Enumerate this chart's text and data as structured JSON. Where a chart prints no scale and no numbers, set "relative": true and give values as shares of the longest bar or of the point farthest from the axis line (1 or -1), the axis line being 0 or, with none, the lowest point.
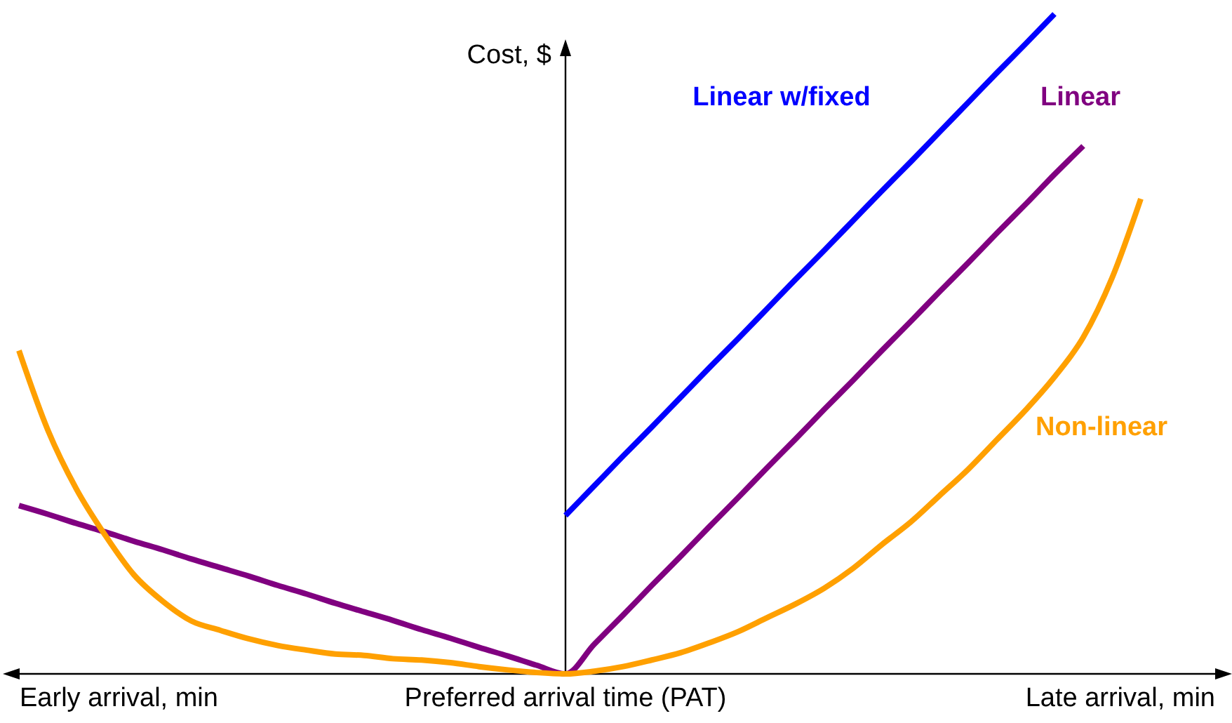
{
  "chart_data": {
    "type": "line",
    "relative": true,
    "ylabel": "Cost, $",
    "xlabel": "Preferred arrival time (PAT)",
    "annotations": [
      "Early arrival, min",
      "Late arrival, min"
    ],
    "categories": [
      null,
      null,
      null,
      null,
      null,
      null,
      null,
      null,
      null,
      null,
      null,
      null,
      null,
      null,
      null,
      null,
      null,
      null,
      null,
      null,
      null,
      null,
      null,
      null,
      null,
      null,
      null,
      null,
      null,
      null,
      null,
      null,
      null,
      null,
      null,
      null,
      null,
      null,
      null,
      null
    ],
    "series": [
      {
        "name": "Linear w/fixed",
        "color": "#0000ff",
        "values": [
          null,
          null,
          null,
          null,
          null,
          null,
          null,
          null,
          null,
          null,
          null,
          null,
          null,
          null,
          null,
          null,
          null,
          null,
          null,
          0.24,
          0.285,
          0.33,
          0.374,
          0.419,
          0.464,
          0.508,
          0.553,
          0.598,
          0.642,
          0.687,
          0.732,
          0.776,
          0.821,
          0.866,
          0.911,
          0.955,
          1,
          null,
          null,
          null
        ]
      },
      {
        "name": "Linear",
        "color": "#800080",
        "values": [
          0.255,
          0.242,
          0.228,
          0.215,
          0.201,
          0.188,
          0.174,
          0.161,
          0.148,
          0.134,
          0.121,
          0.107,
          0.094,
          0.081,
          0.067,
          0.054,
          0.04,
          0.027,
          0.013,
          0,
          0.045,
          0.089,
          0.134,
          0.178,
          0.223,
          0.267,
          0.312,
          0.356,
          0.401,
          0.445,
          0.49,
          0.534,
          0.579,
          0.623,
          0.668,
          0.712,
          0.757,
          0.8,
          null,
          null
        ]
      },
      {
        "name": "Non-linear",
        "color": "#ffa000",
        "values": [
          0.49,
          0.37,
          0.28,
          0.21,
          0.15,
          0.11,
          0.08,
          0.066,
          0.053,
          0.043,
          0.036,
          0.03,
          0.028,
          0.023,
          0.021,
          0.017,
          0.011,
          0.006,
          0.002,
          0,
          0.004,
          0.011,
          0.021,
          0.032,
          0.047,
          0.064,
          0.085,
          0.106,
          0.13,
          0.16,
          0.196,
          0.23,
          0.27,
          0.31,
          0.355,
          0.4,
          0.45,
          0.51,
          0.6,
          0.72
        ]
      }
    ]
  }
}
